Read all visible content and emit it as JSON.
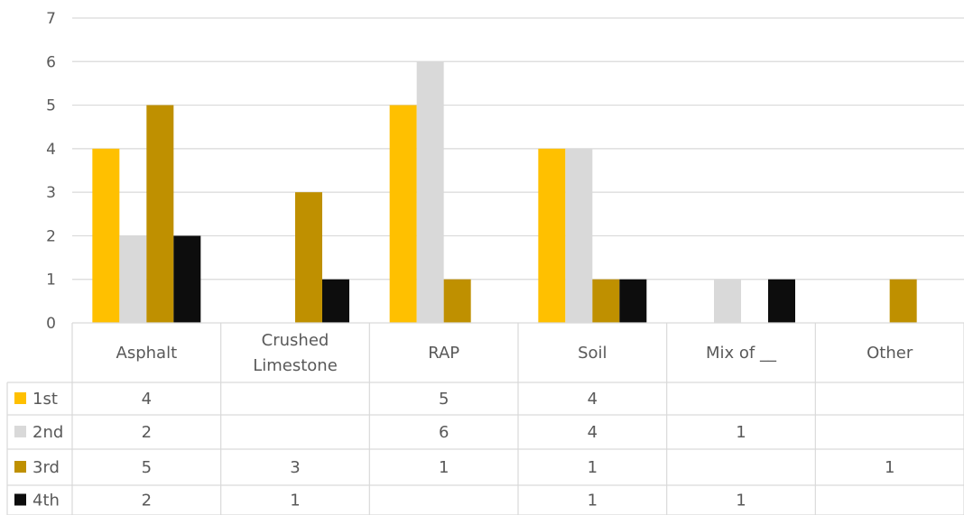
{
  "chart_data": {
    "type": "bar",
    "title": "",
    "xlabel": "",
    "ylabel": "",
    "ylim": [
      0,
      7
    ],
    "yticks": [
      0,
      1,
      2,
      3,
      4,
      5,
      6,
      7
    ],
    "grid": true,
    "legend": "data-table",
    "categories": [
      "Asphalt",
      "Crushed Limestone",
      "RAP",
      "Soil",
      "Mix of __",
      "Other"
    ],
    "category_lines": [
      [
        "Asphalt"
      ],
      [
        "Crushed",
        "Limestone"
      ],
      [
        "RAP"
      ],
      [
        "Soil"
      ],
      [
        "Mix of __"
      ],
      [
        "Other"
      ]
    ],
    "series": [
      {
        "name": "1st",
        "color": "#FFC000",
        "values": [
          4,
          null,
          5,
          4,
          null,
          null
        ]
      },
      {
        "name": "2nd",
        "color": "#D9D9D9",
        "values": [
          2,
          null,
          6,
          4,
          1,
          null
        ]
      },
      {
        "name": "3rd",
        "color": "#BF9000",
        "values": [
          5,
          3,
          1,
          1,
          null,
          1
        ]
      },
      {
        "name": "4th",
        "color": "#0D0D0D",
        "values": [
          2,
          1,
          null,
          1,
          1,
          null
        ]
      }
    ]
  }
}
